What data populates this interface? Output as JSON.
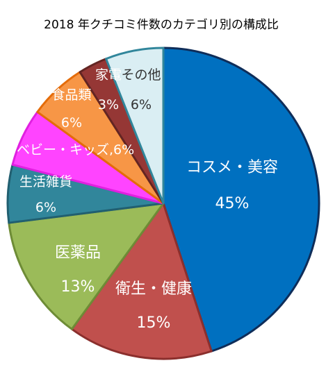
{
  "chart_data": {
    "type": "pie",
    "title": "2018 年クチコミ件数のカテゴリ別の構成比",
    "start_angle_deg": 0,
    "direction": "clockwise",
    "slices": [
      {
        "label": "コスメ・美容",
        "value": 45,
        "value_label": "45%",
        "color": "#0070C0",
        "border": "#0F2D59",
        "text_color": "#FFFFFF"
      },
      {
        "label": "衛生・健康",
        "value": 15,
        "value_label": "15%",
        "color": "#C0504D",
        "border": "#8B2F2D",
        "text_color": "#FFFFFF"
      },
      {
        "label": "医薬品",
        "value": 13,
        "value_label": "13%",
        "color": "#9BBB59",
        "border": "#6E8C36",
        "text_color": "#FFFFFF"
      },
      {
        "label": "生活雑貨",
        "value": 6,
        "value_label": "6%",
        "color": "#31869B",
        "border": "#215F70",
        "text_color": "#FFFFFF"
      },
      {
        "label": "ベビー・キッズ",
        "value": 6,
        "value_label": "6%",
        "color": "#FF44FF",
        "border": "#E020E0",
        "text_color": "#FFFFFF"
      },
      {
        "label": "食品類",
        "value": 6,
        "value_label": "6%",
        "color": "#F79646",
        "border": "#E46C0A",
        "text_color": "#FFFFFF"
      },
      {
        "label": "家電",
        "value": 3,
        "value_label": "3%",
        "color": "#953735",
        "border": "#632523",
        "text_color": "#FFFFFF"
      },
      {
        "label": "その他",
        "value": 6,
        "value_label": "6%",
        "color": "#DAEEF3",
        "border": "#31869B",
        "text_color": "#333333"
      }
    ]
  }
}
